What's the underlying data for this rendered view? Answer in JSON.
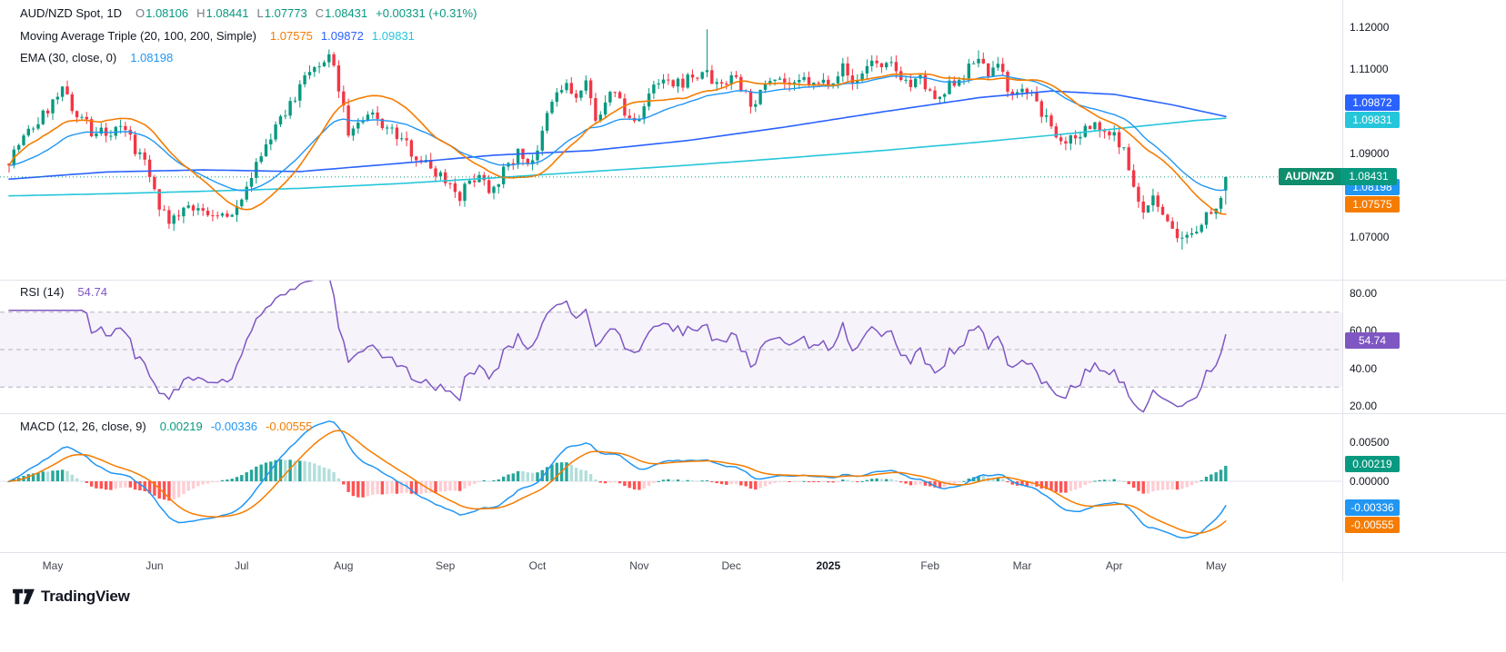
{
  "header": {
    "symbol_title": "AUD/NZD Spot, 1D",
    "ohlc": {
      "o_label": "O",
      "o": "1.08106",
      "h_label": "H",
      "h": "1.08441",
      "l_label": "L",
      "l": "1.07773",
      "c_label": "C",
      "c": "1.08431",
      "change": "+0.00331 (+0.31%)"
    },
    "ma_triple": {
      "label": "Moving Average Triple (20, 100, 200, Simple)",
      "v20": "1.07575",
      "v100": "1.09872",
      "v200": "1.09831"
    },
    "ema": {
      "label": "EMA (30, close, 0)",
      "value": "1.08198"
    }
  },
  "rsi_panel": {
    "label": "RSI (14)",
    "value": "54.74",
    "badge": "54.74",
    "axis": [
      "80.00",
      "60.00",
      "40.00",
      "20.00"
    ]
  },
  "macd_panel": {
    "label": "MACD (12, 26, close, 9)",
    "hist": "0.00219",
    "macd": "-0.00336",
    "signal": "-0.00555",
    "axis": [
      "0.00500",
      "0.00000"
    ]
  },
  "symbol_badge": {
    "label": "AUD/NZD",
    "value": "1.08431"
  },
  "price_axis": {
    "plain": [
      {
        "text": "1.12000",
        "value": 1.12
      },
      {
        "text": "1.11000",
        "value": 1.11
      },
      {
        "text": "1.09000",
        "value": 1.09
      },
      {
        "text": "1.07000",
        "value": 1.07
      }
    ]
  },
  "time_axis": {
    "labels": [
      {
        "text": "May",
        "d": 9
      },
      {
        "text": "Jun",
        "d": 30
      },
      {
        "text": "Jul",
        "d": 48
      },
      {
        "text": "Aug",
        "d": 69
      },
      {
        "text": "Sep",
        "d": 90
      },
      {
        "text": "Oct",
        "d": 109
      },
      {
        "text": "Nov",
        "d": 130
      },
      {
        "text": "Dec",
        "d": 149
      },
      {
        "text": "2025",
        "d": 169,
        "bold": true
      },
      {
        "text": "Feb",
        "d": 190
      },
      {
        "text": "Mar",
        "d": 209
      },
      {
        "text": "Apr",
        "d": 228
      },
      {
        "text": "May",
        "d": 249
      }
    ]
  },
  "logo": {
    "text": "TradingView"
  },
  "chart_data": {
    "type": "candlestick",
    "symbol": "AUD/NZD Spot",
    "interval": "1D",
    "days": 252,
    "seed": 7,
    "noise": 0.003,
    "wick": 0.0017,
    "price_ylim": [
      1.0598,
      1.1265
    ],
    "visible_price_ticks": [
      1.12,
      1.11,
      1.09,
      1.07
    ],
    "last_candle": {
      "open": 1.08106,
      "high": 1.08441,
      "low": 1.07773,
      "close": 1.08431,
      "change": 0.00331,
      "change_pct": 0.31
    },
    "close_anchors": [
      [
        0,
        1.0885
      ],
      [
        2,
        1.092
      ],
      [
        4,
        1.095
      ],
      [
        6,
        1.0975
      ],
      [
        9,
        1.102
      ],
      [
        11,
        1.1045
      ],
      [
        13,
        1.101
      ],
      [
        15,
        1.099
      ],
      [
        17,
        1.0945
      ],
      [
        19,
        1.097
      ],
      [
        21,
        1.094
      ],
      [
        23,
        1.096
      ],
      [
        25,
        1.093
      ],
      [
        27,
        1.0895
      ],
      [
        29,
        1.0845
      ],
      [
        31,
        1.078
      ],
      [
        33,
        1.0728
      ],
      [
        35,
        1.0745
      ],
      [
        37,
        1.0775
      ],
      [
        39,
        1.0758
      ],
      [
        41,
        1.0738
      ],
      [
        43,
        1.076
      ],
      [
        45,
        1.075
      ],
      [
        47,
        1.0785
      ],
      [
        49,
        1.082
      ],
      [
        51,
        1.087
      ],
      [
        53,
        1.092
      ],
      [
        55,
        1.096
      ],
      [
        57,
        1.099
      ],
      [
        59,
        1.103
      ],
      [
        61,
        1.1075
      ],
      [
        63,
        1.11
      ],
      [
        65,
        1.112
      ],
      [
        66,
        1.113
      ],
      [
        68,
        1.106
      ],
      [
        70,
        1.095
      ],
      [
        72,
        1.0965
      ],
      [
        75,
        1.099
      ],
      [
        78,
        1.096
      ],
      [
        81,
        1.093
      ],
      [
        84,
        1.0895
      ],
      [
        87,
        1.0865
      ],
      [
        90,
        1.084
      ],
      [
        93,
        1.08
      ],
      [
        95,
        1.083
      ],
      [
        97,
        1.0855
      ],
      [
        99,
        1.0815
      ],
      [
        101,
        1.084
      ],
      [
        103,
        1.087
      ],
      [
        105,
        1.09
      ],
      [
        107,
        1.088
      ],
      [
        109,
        1.0895
      ],
      [
        111,
        1.099
      ],
      [
        113,
        1.1045
      ],
      [
        115,
        1.106
      ],
      [
        117,
        1.103
      ],
      [
        119,
        1.106
      ],
      [
        121,
        1.099
      ],
      [
        123,
        1.101
      ],
      [
        125,
        1.1055
      ],
      [
        127,
        1.099
      ],
      [
        129,
        1.0975
      ],
      [
        131,
        1.101
      ],
      [
        133,
        1.1055
      ],
      [
        135,
        1.107
      ],
      [
        137,
        1.1055
      ],
      [
        139,
        1.107
      ],
      [
        141,
        1.1085
      ],
      [
        143,
        1.108
      ],
      [
        144,
        1.1105
      ],
      [
        146,
        1.1055
      ],
      [
        148,
        1.107
      ],
      [
        150,
        1.1085
      ],
      [
        152,
        1.104
      ],
      [
        154,
        1.1005
      ],
      [
        156,
        1.1075
      ],
      [
        158,
        1.109
      ],
      [
        160,
        1.107
      ],
      [
        162,
        1.1055
      ],
      [
        164,
        1.1075
      ],
      [
        166,
        1.106
      ],
      [
        168,
        1.107
      ],
      [
        170,
        1.108
      ],
      [
        172,
        1.1105
      ],
      [
        174,
        1.1065
      ],
      [
        176,
        1.109
      ],
      [
        178,
        1.1125
      ],
      [
        180,
        1.1095
      ],
      [
        182,
        1.111
      ],
      [
        184,
        1.1085
      ],
      [
        186,
        1.106
      ],
      [
        188,
        1.1075
      ],
      [
        190,
        1.104
      ],
      [
        192,
        1.102
      ],
      [
        194,
        1.106
      ],
      [
        196,
        1.108
      ],
      [
        198,
        1.11
      ],
      [
        200,
        1.113
      ],
      [
        202,
        1.109
      ],
      [
        204,
        1.1105
      ],
      [
        206,
        1.106
      ],
      [
        208,
        1.104
      ],
      [
        210,
        1.105
      ],
      [
        212,
        1.102
      ],
      [
        214,
        1.098
      ],
      [
        216,
        1.095
      ],
      [
        218,
        1.093
      ],
      [
        220,
        1.0925
      ],
      [
        222,
        1.0955
      ],
      [
        224,
        1.0965
      ],
      [
        226,
        1.0945
      ],
      [
        228,
        1.095
      ],
      [
        230,
        1.0905
      ],
      [
        232,
        1.083
      ],
      [
        234,
        1.076
      ],
      [
        236,
        1.08
      ],
      [
        238,
        1.0745
      ],
      [
        240,
        1.072
      ],
      [
        242,
        1.069
      ],
      [
        244,
        1.071
      ],
      [
        246,
        1.074
      ],
      [
        248,
        1.076
      ],
      [
        250,
        1.08
      ],
      [
        251,
        1.08431
      ]
    ],
    "overrides": [
      {
        "d": 11,
        "high": 1.1058
      },
      {
        "d": 66,
        "high": 1.1147
      },
      {
        "d": 144,
        "high": 1.1195
      },
      {
        "d": 200,
        "high": 1.1145
      },
      {
        "d": 242,
        "low": 1.067
      },
      {
        "d": 251,
        "open": 1.08106,
        "high": 1.08441,
        "low": 1.07773,
        "close": 1.08431
      }
    ],
    "sma100_anchors": [
      [
        0,
        1.0838
      ],
      [
        20,
        1.0855
      ],
      [
        40,
        1.086
      ],
      [
        60,
        1.0856
      ],
      [
        80,
        1.0875
      ],
      [
        100,
        1.0895
      ],
      [
        120,
        1.0906
      ],
      [
        140,
        1.093
      ],
      [
        160,
        1.0962
      ],
      [
        180,
        1.0998
      ],
      [
        200,
        1.1032
      ],
      [
        215,
        1.1048
      ],
      [
        228,
        1.104
      ],
      [
        240,
        1.1015
      ],
      [
        251,
        1.09872
      ]
    ],
    "sma200_anchors": [
      [
        0,
        1.0798
      ],
      [
        20,
        1.0803
      ],
      [
        40,
        1.0809
      ],
      [
        60,
        1.0816
      ],
      [
        80,
        1.0827
      ],
      [
        100,
        1.0841
      ],
      [
        120,
        1.0856
      ],
      [
        140,
        1.0871
      ],
      [
        160,
        1.0888
      ],
      [
        180,
        1.0906
      ],
      [
        200,
        1.0926
      ],
      [
        220,
        1.0948
      ],
      [
        235,
        1.0966
      ],
      [
        245,
        1.0978
      ],
      [
        251,
        1.09831
      ]
    ],
    "indicators": {
      "moving_average_triple": {
        "periods": [
          20,
          100,
          200
        ],
        "ma_type": "Simple",
        "last_values": [
          1.07575,
          1.09872,
          1.09831
        ]
      },
      "ema30": {
        "period": 30,
        "source": "close",
        "offset": 0,
        "last_value": 1.08198
      },
      "rsi": {
        "period": 14,
        "last_value": 54.74,
        "upper_band": 70,
        "middle_band": 50,
        "lower_band": 30,
        "axis_ticks": [
          80,
          60,
          40,
          20
        ]
      },
      "macd": {
        "fast_length": 12,
        "slow_length": 26,
        "source": "close",
        "signal_length": 9,
        "last_histogram": 0.00219,
        "last_macd": -0.00336,
        "last_signal": -0.00555,
        "axis_ticks": [
          0.005,
          0
        ]
      }
    },
    "colors": {
      "up": "#089981",
      "down": "#f23645",
      "sma20": "#f57c00",
      "sma100": "#2962ff",
      "sma200": "#26c6da",
      "ema30": "#2196f3",
      "rsi": "#7e57c2",
      "macd_line": "#2196f3",
      "signal_line": "#f57c00",
      "hist_up": "#26a69a",
      "hist_up_fade": "#b2dfdb",
      "hist_dn": "#ff5252",
      "hist_dn_fade": "#ffcdd2",
      "symbol_label_bg": "#0f8d6d"
    }
  }
}
